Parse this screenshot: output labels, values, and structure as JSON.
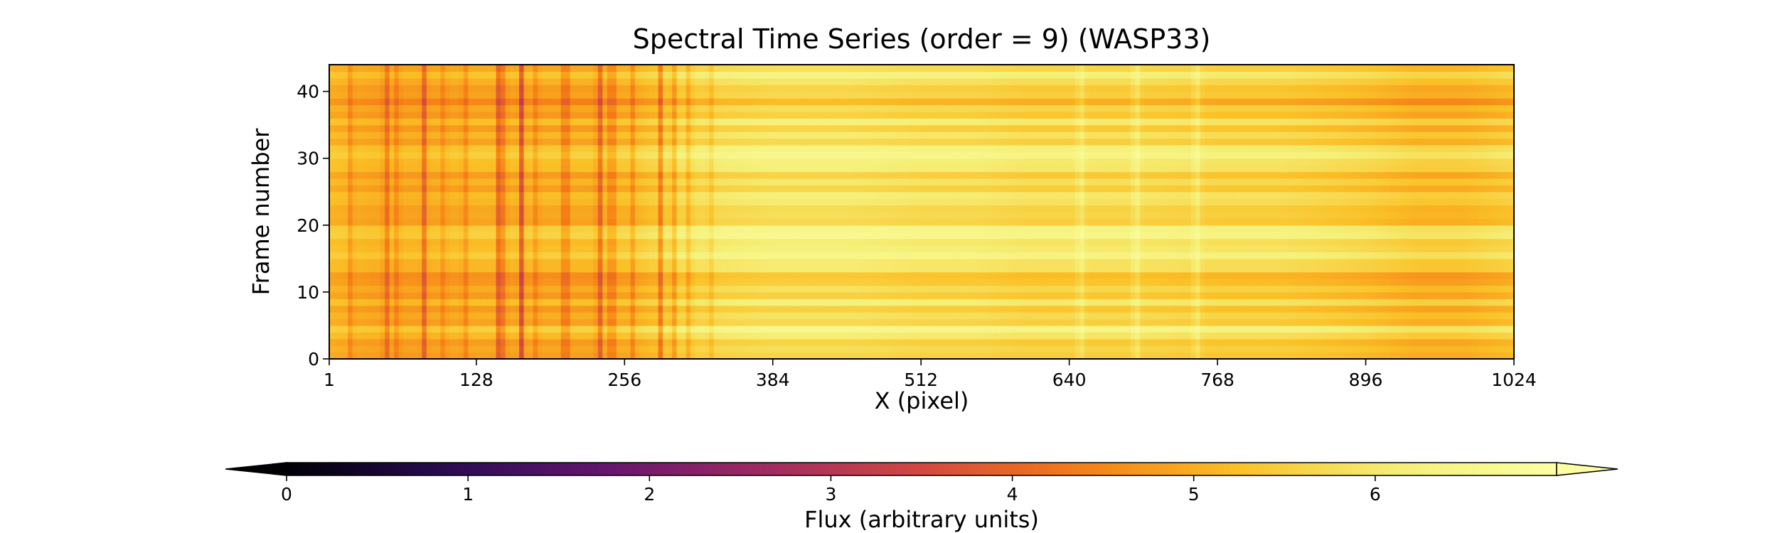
{
  "chart_data": {
    "type": "heatmap",
    "title": "Spectral Time Series (order = 9) (WASP33)",
    "xlabel": "X (pixel)",
    "ylabel": "Frame number",
    "xlim": [
      1,
      1024
    ],
    "ylim": [
      0,
      44
    ],
    "x_ticks": [
      "1",
      "128",
      "256",
      "384",
      "512",
      "640",
      "768",
      "896",
      "1024"
    ],
    "y_ticks": [
      "0",
      "10",
      "20",
      "30",
      "40"
    ],
    "colormap": "inferno",
    "colorbar": {
      "label": "Flux (arbitrary units)",
      "vmin": 0,
      "vmax": 7,
      "ticks": [
        "0",
        "1",
        "2",
        "3",
        "4",
        "5",
        "6"
      ],
      "extend": "both",
      "orientation": "horizontal",
      "placement": "bottom"
    },
    "column_profile": {
      "x": [
        1,
        40,
        80,
        128,
        180,
        230,
        270,
        300,
        340,
        384,
        450,
        512,
        560,
        600,
        640,
        680,
        720,
        768,
        820,
        860,
        896,
        940,
        980,
        1024
      ],
      "flux": [
        5.2,
        5.0,
        5.0,
        5.1,
        5.1,
        5.1,
        5.3,
        5.7,
        5.9,
        6.0,
        6.0,
        5.9,
        5.9,
        5.8,
        5.8,
        5.8,
        5.8,
        5.7,
        5.7,
        5.6,
        5.5,
        5.3,
        5.3,
        5.5
      ]
    },
    "absorption_lines": [
      {
        "x": 20,
        "depth": 0.5
      },
      {
        "x": 50,
        "depth": 0.9
      },
      {
        "x": 60,
        "depth": 0.5
      },
      {
        "x": 83,
        "depth": 0.9
      },
      {
        "x": 100,
        "depth": 0.4
      },
      {
        "x": 118,
        "depth": 0.5
      },
      {
        "x": 148,
        "depth": 1.2
      },
      {
        "x": 152,
        "depth": 0.6
      },
      {
        "x": 167,
        "depth": 1.3
      },
      {
        "x": 180,
        "depth": 0.5
      },
      {
        "x": 205,
        "depth": 1.2
      },
      {
        "x": 234,
        "depth": 1.2
      },
      {
        "x": 245,
        "depth": 1.1
      },
      {
        "x": 263,
        "depth": 0.5
      },
      {
        "x": 287,
        "depth": 1.0
      },
      {
        "x": 298,
        "depth": 0.8
      },
      {
        "x": 312,
        "depth": 0.6
      },
      {
        "x": 330,
        "depth": 0.4
      }
    ],
    "bright_columns": [
      {
        "x": 650,
        "gain": 0.35
      },
      {
        "x": 698,
        "gain": 0.4
      },
      {
        "x": 750,
        "gain": 0.4
      }
    ],
    "row_offsets": [
      -0.35,
      -0.2,
      -0.4,
      0.1,
      0.55,
      -0.3,
      -0.1,
      -0.45,
      0.2,
      -0.45,
      -0.15,
      -0.5,
      -0.6,
      0.05,
      0.05,
      0.5,
      0.2,
      0.1,
      0.6,
      0.5,
      -0.3,
      -0.2,
      -0.25,
      0.05,
      0.15,
      -0.35,
      0.0,
      -0.4,
      0.15,
      0.2,
      0.55,
      0.35,
      -0.3,
      0.05,
      -0.4,
      0.2,
      -0.45,
      -0.2,
      -0.8,
      -0.3,
      -0.4,
      -0.05,
      0.3,
      -0.2
    ]
  }
}
